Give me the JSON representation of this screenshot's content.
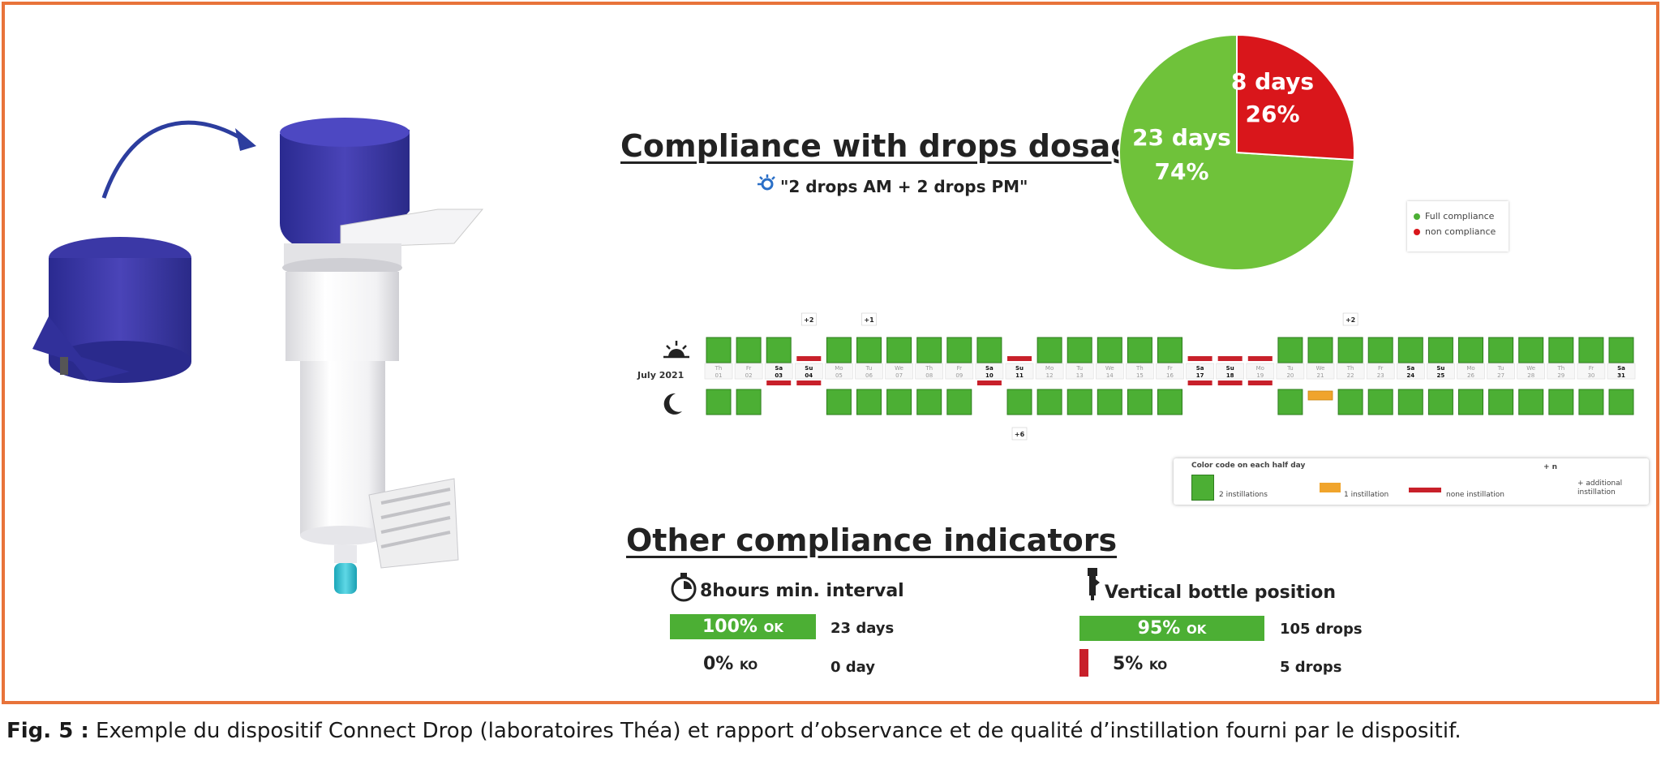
{
  "report": {
    "title_dosage": "Compliance with drops dosage",
    "regimen": "\"2 drops AM + 2 drops PM\"",
    "title_indicators": "Other compliance indicators"
  },
  "pie": {
    "legend": [
      "Full compliance",
      "non compliance"
    ],
    "colors": {
      "full": "#6fc23a",
      "non": "#d9161b"
    },
    "slices": [
      {
        "label_days": "23 days",
        "label_pct": "74%",
        "value": 74
      },
      {
        "label_days": "8 days",
        "label_pct": "26%",
        "value": 26
      }
    ]
  },
  "calendar": {
    "month_label": "July 2021",
    "extra_marks": {
      "morning": [
        [
          "+2",
          3
        ],
        [
          "+1",
          5
        ],
        [
          "+2",
          21
        ]
      ],
      "evening": [
        [
          "+6",
          10
        ]
      ]
    },
    "days": [
      {
        "dow": "Th",
        "n": "01",
        "am": "g",
        "pm": "g",
        "we": false
      },
      {
        "dow": "Fr",
        "n": "02",
        "am": "g",
        "pm": "g",
        "we": false
      },
      {
        "dow": "Sa",
        "n": "03",
        "am": "g",
        "pm": "r",
        "we": true
      },
      {
        "dow": "Su",
        "n": "04",
        "am": "r",
        "pm": "r",
        "we": true
      },
      {
        "dow": "Mo",
        "n": "05",
        "am": "g",
        "pm": "g",
        "we": false
      },
      {
        "dow": "Tu",
        "n": "06",
        "am": "g",
        "pm": "g",
        "we": false
      },
      {
        "dow": "We",
        "n": "07",
        "am": "g",
        "pm": "g",
        "we": false
      },
      {
        "dow": "Th",
        "n": "08",
        "am": "g",
        "pm": "g",
        "we": false
      },
      {
        "dow": "Fr",
        "n": "09",
        "am": "g",
        "pm": "g",
        "we": false
      },
      {
        "dow": "Sa",
        "n": "10",
        "am": "g",
        "pm": "r",
        "we": true
      },
      {
        "dow": "Su",
        "n": "11",
        "am": "r",
        "pm": "g",
        "we": true
      },
      {
        "dow": "Mo",
        "n": "12",
        "am": "g",
        "pm": "g",
        "we": false
      },
      {
        "dow": "Tu",
        "n": "13",
        "am": "g",
        "pm": "g",
        "we": false
      },
      {
        "dow": "We",
        "n": "14",
        "am": "g",
        "pm": "g",
        "we": false
      },
      {
        "dow": "Th",
        "n": "15",
        "am": "g",
        "pm": "g",
        "we": false
      },
      {
        "dow": "Fr",
        "n": "16",
        "am": "g",
        "pm": "g",
        "we": false
      },
      {
        "dow": "Sa",
        "n": "17",
        "am": "r",
        "pm": "r",
        "we": true
      },
      {
        "dow": "Su",
        "n": "18",
        "am": "r",
        "pm": "r",
        "we": true
      },
      {
        "dow": "Mo",
        "n": "19",
        "am": "r",
        "pm": "r",
        "we": false
      },
      {
        "dow": "Tu",
        "n": "20",
        "am": "g",
        "pm": "g",
        "we": false
      },
      {
        "dow": "We",
        "n": "21",
        "am": "g",
        "pm": "o",
        "we": false
      },
      {
        "dow": "Th",
        "n": "22",
        "am": "g",
        "pm": "g",
        "we": false
      },
      {
        "dow": "Fr",
        "n": "23",
        "am": "g",
        "pm": "g",
        "we": false
      },
      {
        "dow": "Sa",
        "n": "24",
        "am": "g",
        "pm": "g",
        "we": true
      },
      {
        "dow": "Su",
        "n": "25",
        "am": "g",
        "pm": "g",
        "we": true
      },
      {
        "dow": "Mo",
        "n": "26",
        "am": "g",
        "pm": "g",
        "we": false
      },
      {
        "dow": "Tu",
        "n": "27",
        "am": "g",
        "pm": "g",
        "we": false
      },
      {
        "dow": "We",
        "n": "28",
        "am": "g",
        "pm": "g",
        "we": false
      },
      {
        "dow": "Th",
        "n": "29",
        "am": "g",
        "pm": "g",
        "we": false
      },
      {
        "dow": "Fr",
        "n": "30",
        "am": "g",
        "pm": "g",
        "we": false
      },
      {
        "dow": "Sa",
        "n": "31",
        "am": "g",
        "pm": "g",
        "we": true
      }
    ],
    "colors": {
      "g": "#4caf34",
      "r": "#c8202a",
      "o": "#f0a42c"
    }
  },
  "color_code": {
    "title": "Color code on each half day",
    "items": [
      "2 instillations",
      "1 instillation",
      "none instillation"
    ],
    "extra_sample": "+ n",
    "extra_label": "+ additional instillation"
  },
  "indicators": {
    "interval": {
      "label": "8hours min. interval",
      "ok_pct": "100%",
      "ok_word": "OK",
      "ok_value": 100,
      "ok_count": "23 days",
      "ko_pct": "0%",
      "ko_word": "KO",
      "ko_count": "0 day"
    },
    "position": {
      "label": "Vertical bottle position",
      "ok_pct": "95%",
      "ok_word": "OK",
      "ok_value": 95,
      "ok_count": "105 drops",
      "ko_pct": "5%",
      "ko_word": "KO",
      "ko_count": "5 drops"
    }
  },
  "caption": {
    "fig_label": "Fig. 5 :",
    "text": " Exemple du dispositif Connect Drop (laboratoires Théa) et rapport d’observance et de qualité d’instillation fourni par le dispositif."
  }
}
